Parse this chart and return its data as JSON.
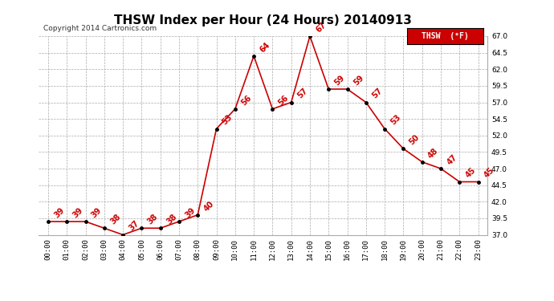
{
  "title": "THSW Index per Hour (24 Hours) 20140913",
  "copyright": "Copyright 2014 Cartronics.com",
  "legend_label": "THSW  (°F)",
  "hours": [
    0,
    1,
    2,
    3,
    4,
    5,
    6,
    7,
    8,
    9,
    10,
    11,
    12,
    13,
    14,
    15,
    16,
    17,
    18,
    19,
    20,
    21,
    22,
    23
  ],
  "values": [
    39,
    39,
    39,
    38,
    37,
    38,
    38,
    39,
    40,
    53,
    56,
    64,
    56,
    57,
    67,
    59,
    59,
    57,
    53,
    50,
    48,
    47,
    45,
    45
  ],
  "ylim": [
    37.0,
    67.0
  ],
  "yticks": [
    37.0,
    39.5,
    42.0,
    44.5,
    47.0,
    49.5,
    52.0,
    54.5,
    57.0,
    59.5,
    62.0,
    64.5,
    67.0
  ],
  "line_color": "#cc0000",
  "marker_color": "#000000",
  "bg_color": "#ffffff",
  "grid_color": "#aaaaaa",
  "title_fontsize": 11,
  "label_fontsize": 6.5,
  "annot_fontsize": 7,
  "copyright_fontsize": 6.5,
  "legend_bg": "#cc0000",
  "legend_text_color": "#ffffff"
}
